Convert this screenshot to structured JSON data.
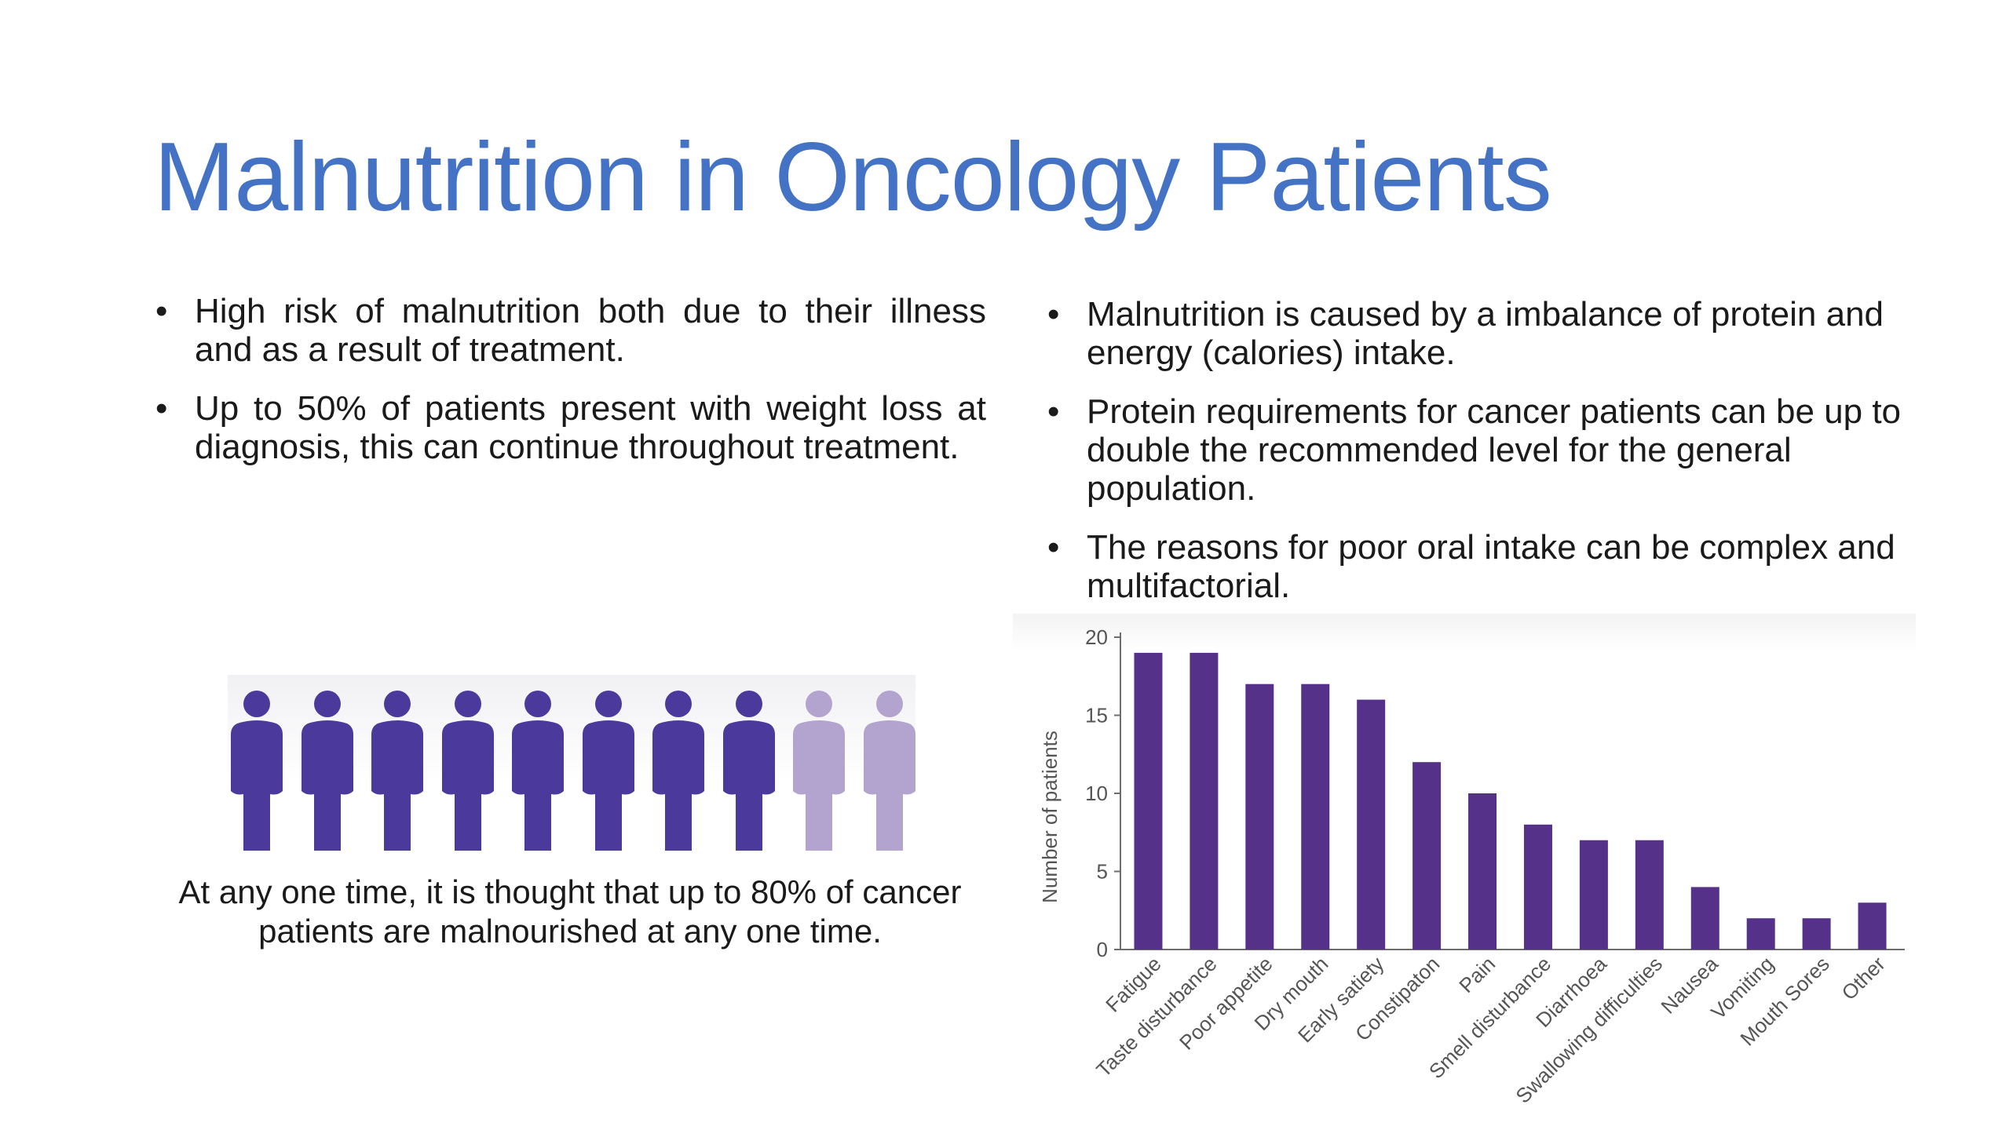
{
  "title": "Malnutrition in Oncology Patients",
  "left_bullets": [
    "High risk of malnutrition both due to their illness and as a result of treatment.",
    "Up to 50% of patients present with weight loss at diagnosis, this can continue throughout treatment."
  ],
  "right_bullets": [
    "Malnutrition is caused by a imbalance of protein and energy (calories) intake.",
    "Protein requirements for cancer patients can be up to double the recommended level for the general population.",
    "The reasons for poor oral intake can be complex and multifactorial."
  ],
  "infographic": {
    "total_people": 10,
    "highlighted_people": 8,
    "highlight_color": "#4b3a9c",
    "muted_color": "#b3a3cf",
    "caption": "At any one time, it is thought that up to 80% of cancer patients are malnourished at any one time."
  },
  "chart_data": {
    "type": "bar",
    "categories": [
      "Fatigue",
      "Taste disturbance",
      "Poor appetite",
      "Dry mouth",
      "Early satiety",
      "Constipaton",
      "Pain",
      "Smell disturbance",
      "Diarrhoea",
      "Swallowing difficulties",
      "Nausea",
      "Vomiting",
      "Mouth Sores",
      "Other"
    ],
    "values": [
      19,
      19,
      17,
      17,
      16,
      12,
      10,
      8,
      7,
      7,
      4,
      2,
      2,
      3
    ],
    "title": "",
    "xlabel": "",
    "ylabel": "Number of patients",
    "ylim": [
      0,
      20
    ],
    "yticks": [
      0,
      5,
      10,
      15,
      20
    ],
    "bar_color": "#55318a",
    "grid": false
  }
}
